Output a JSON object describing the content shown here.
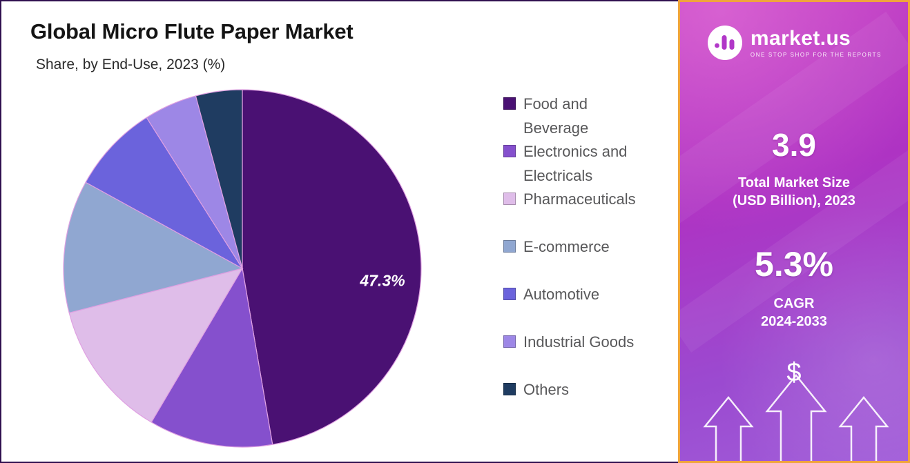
{
  "chart_data": {
    "type": "pie",
    "title": "Global Micro Flute Paper Market",
    "subtitle": "Share, by End-Use, 2023 (%)",
    "unit": "%",
    "start_angle_deg": 0,
    "direction": "clockwise",
    "legend_position": "right",
    "segments": [
      {
        "label": "Food and Beverage",
        "value": 47.3,
        "color": "#4a1173",
        "data_label": "47.3%"
      },
      {
        "label": "Electronics and Electricals",
        "value": 11.2,
        "color": "#8550cd"
      },
      {
        "label": "Pharmaceuticals",
        "value": 12.5,
        "color": "#dfbde9"
      },
      {
        "label": "E-commerce",
        "value": 12.0,
        "color": "#90a7d1"
      },
      {
        "label": "Automotive",
        "value": 8.0,
        "color": "#6b63dc"
      },
      {
        "label": "Industrial Goods",
        "value": 4.8,
        "color": "#9d87e6"
      },
      {
        "label": "Others",
        "value": 4.2,
        "color": "#1f3c61"
      }
    ]
  },
  "sidebar": {
    "brand": "market.us",
    "tagline": "ONE STOP SHOP FOR THE REPORTS",
    "market_size_value": "3.9",
    "market_size_label": "Total Market Size\n(USD Billion), 2023",
    "cagr_value": "5.3%",
    "cagr_label": "CAGR\n2024-2033",
    "dollar_symbol": "$"
  },
  "colors": {
    "sidebar_border": "#f0a43c",
    "panel_border": "#30104f",
    "legend_text": "#58585a",
    "slice_stroke": "#dfa0e2"
  }
}
